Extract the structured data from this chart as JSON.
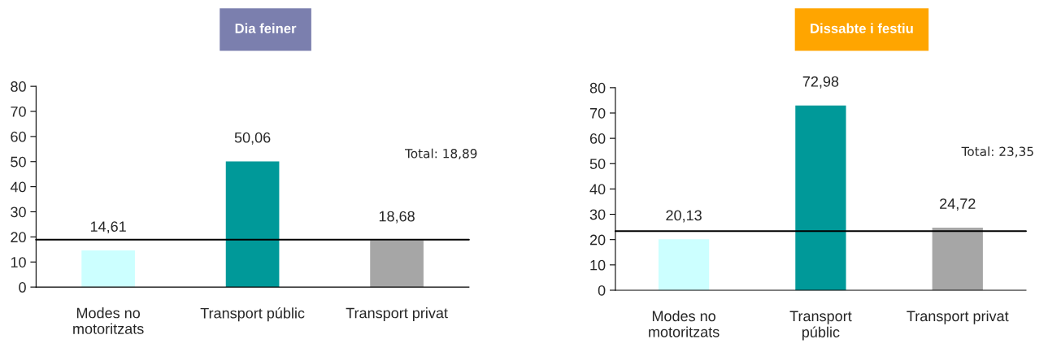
{
  "chart_data": [
    {
      "type": "bar",
      "title": "Dia feiner",
      "categories": [
        "Modes no\nmotoritzats",
        "Transport públic",
        "Transport privat"
      ],
      "series": [
        {
          "colors": [
            "#ccffff",
            "#009999",
            "#a6a6a6"
          ],
          "values": [
            14.61,
            50.06,
            18.68
          ],
          "value_labels": [
            "14,61",
            "50,06",
            "18,68"
          ]
        }
      ],
      "ylim": [
        0,
        80
      ],
      "yticks": [
        0,
        10,
        20,
        30,
        40,
        50,
        60,
        70,
        80
      ],
      "grid": false,
      "legend": false,
      "ref_lines": [
        {
          "axis": "y",
          "value": 18.89,
          "label": "Total: 18,89",
          "color": "#000000"
        }
      ]
    },
    {
      "type": "bar",
      "title": "Dissabte i festiu",
      "categories": [
        "Modes no\nmotoritzats",
        "Transport\npúblic",
        "Transport privat"
      ],
      "series": [
        {
          "colors": [
            "#ccffff",
            "#009999",
            "#a6a6a6"
          ],
          "values": [
            20.13,
            72.98,
            24.72
          ],
          "value_labels": [
            "20,13",
            "72,98",
            "24,72"
          ]
        }
      ],
      "ylim": [
        0,
        80
      ],
      "yticks": [
        0,
        10,
        20,
        30,
        40,
        50,
        60,
        70,
        80
      ],
      "grid": false,
      "legend": false,
      "ref_lines": [
        {
          "axis": "y",
          "value": 23.35,
          "label": "Total: 23,35",
          "color": "#000000"
        }
      ]
    }
  ]
}
